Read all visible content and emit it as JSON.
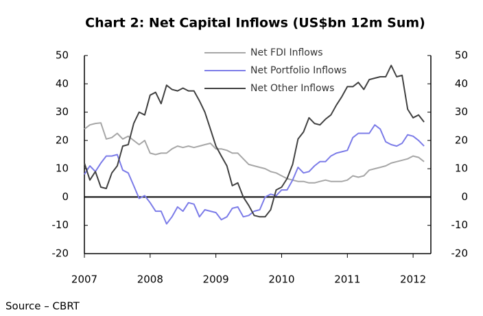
{
  "chart_data": {
    "type": "line",
    "title": "Chart 2: Net Capital Inflows (US$bn 12m Sum)",
    "source": "Source – CBRT",
    "x": [
      2007,
      2007.083,
      2007.167,
      2007.25,
      2007.333,
      2007.417,
      2007.5,
      2007.583,
      2007.667,
      2007.75,
      2007.833,
      2007.917,
      2008,
      2008.083,
      2008.167,
      2008.25,
      2008.333,
      2008.417,
      2008.5,
      2008.583,
      2008.667,
      2008.75,
      2008.833,
      2008.917,
      2009,
      2009.083,
      2009.167,
      2009.25,
      2009.333,
      2009.417,
      2009.5,
      2009.583,
      2009.667,
      2009.75,
      2009.833,
      2009.917,
      2010,
      2010.083,
      2010.167,
      2010.25,
      2010.333,
      2010.417,
      2010.5,
      2010.583,
      2010.667,
      2010.75,
      2010.833,
      2010.917,
      2011,
      2011.083,
      2011.167,
      2011.25,
      2011.333,
      2011.417,
      2011.5,
      2011.583,
      2011.667,
      2011.75,
      2011.833,
      2011.917,
      2012,
      2012.083,
      2012.167
    ],
    "series": [
      {
        "name": "Net FDI Inflows",
        "color": "#a6a6a6",
        "values": [
          24,
          25.5,
          26,
          26.2,
          20.5,
          21,
          22.5,
          20.5,
          21.5,
          20,
          18.5,
          20,
          15.5,
          15,
          15.5,
          15.5,
          17,
          18,
          17.5,
          18,
          17.5,
          18,
          18.5,
          19,
          17,
          17,
          16.5,
          15.5,
          15.5,
          13.5,
          11.5,
          11,
          10.5,
          10,
          9,
          8.5,
          7.5,
          6.5,
          6,
          5.5,
          5.5,
          5,
          5,
          5.5,
          6,
          5.5,
          5.5,
          5.5,
          6,
          7.5,
          7,
          7.5,
          9.5,
          10,
          10.5,
          11,
          12,
          12.5,
          13,
          13.5,
          14.5,
          14,
          12.5
        ]
      },
      {
        "name": "Net Portfolio Inflows",
        "color": "#7b7be8",
        "values": [
          8,
          11,
          9,
          12,
          14.5,
          14.5,
          15,
          9.5,
          8.5,
          4,
          -0.5,
          0.5,
          -2,
          -5,
          -5,
          -9.5,
          -7,
          -3.5,
          -5,
          -2,
          -2.5,
          -7,
          -4.5,
          -5,
          -5.5,
          -8,
          -7,
          -4,
          -3.5,
          -7,
          -6.5,
          -5,
          -4.5,
          0,
          1,
          0.5,
          2.5,
          2.5,
          6,
          10.5,
          8.5,
          9,
          11,
          12.5,
          12.5,
          14.5,
          15.5,
          16,
          16.5,
          21,
          22.5,
          22.5,
          22.5,
          25.5,
          24,
          19.5,
          18.5,
          18,
          19,
          22,
          21.5,
          20,
          18
        ]
      },
      {
        "name": "Net Other Inflows",
        "color": "#404040",
        "values": [
          12,
          6,
          9,
          3.5,
          3,
          8.5,
          11,
          18,
          18.5,
          26,
          30,
          29,
          36,
          37,
          33,
          39.5,
          38,
          37.5,
          38.5,
          37.5,
          37.5,
          34,
          30,
          24,
          18,
          14.5,
          11,
          4,
          5,
          0,
          -3,
          -6.5,
          -7,
          -7,
          -4.5,
          2.5,
          3.5,
          6.5,
          11.5,
          20.5,
          23,
          28,
          26,
          25.5,
          27.5,
          29,
          32.5,
          35.5,
          39,
          39,
          40.5,
          38,
          41.5,
          42,
          42.5,
          42.5,
          46.5,
          42.5,
          43,
          31,
          28,
          29,
          26.5
        ]
      }
    ],
    "xlim": [
      2007,
      2012.27
    ],
    "xticks": [
      2007,
      2008,
      2009,
      2010,
      2011,
      2012
    ],
    "ylim": [
      -20,
      50
    ],
    "yticks": [
      -20,
      -10,
      0,
      10,
      20,
      30,
      40,
      50
    ],
    "legend": "top"
  }
}
